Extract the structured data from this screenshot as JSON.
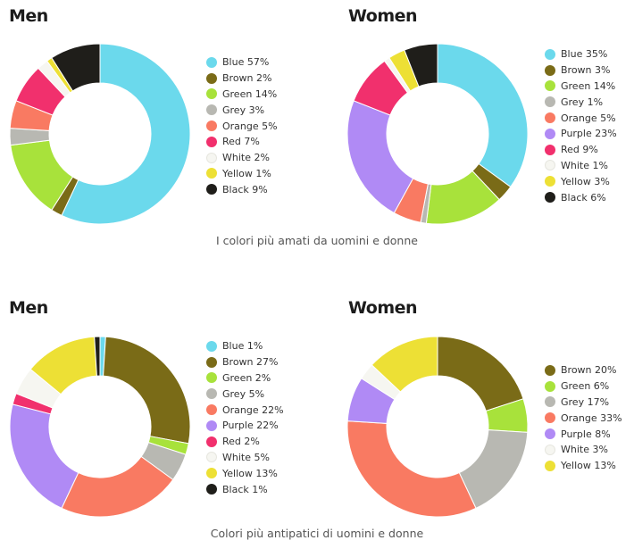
{
  "colors": {
    "Blue": "#6bd9ec",
    "Brown": "#7a6b17",
    "Green": "#a8e23b",
    "Grey": "#b8b8b2",
    "Orange": "#f97a62",
    "Purple": "#b08af5",
    "Red": "#f1306d",
    "White": "#f6f6f1",
    "Yellow": "#ede035",
    "Black": "#1f1e1a"
  },
  "captions": {
    "top": "I colori più amati da uomini e donne",
    "bottom": "Colori più antipatici di uomini e donne"
  },
  "chart_data": [
    {
      "type": "pie",
      "title": "Men",
      "labels": [
        "Blue",
        "Brown",
        "Green",
        "Grey",
        "Orange",
        "Red",
        "White",
        "Yellow",
        "Black"
      ],
      "values": [
        57,
        2,
        14,
        3,
        5,
        7,
        2,
        1,
        9
      ],
      "legend": [
        "Blue 57%",
        "Brown 2%",
        "Green 14%",
        "Grey 3%",
        "Orange 5%",
        "Red 7%",
        "White 2%",
        "Yellow 1%",
        "Black 9%"
      ]
    },
    {
      "type": "pie",
      "title": "Women",
      "labels": [
        "Blue",
        "Brown",
        "Green",
        "Grey",
        "Orange",
        "Purple",
        "Red",
        "White",
        "Yellow",
        "Black"
      ],
      "values": [
        35,
        3,
        14,
        1,
        5,
        23,
        9,
        1,
        3,
        6
      ],
      "legend": [
        "Blue 35%",
        "Brown 3%",
        "Green 14%",
        "Grey 1%",
        "Orange 5%",
        "Purple 23%",
        "Red 9%",
        "White 1%",
        "Yellow 3%",
        "Black 6%"
      ]
    },
    {
      "type": "pie",
      "title": "Men",
      "labels": [
        "Blue",
        "Brown",
        "Green",
        "Grey",
        "Orange",
        "Purple",
        "Red",
        "White",
        "Yellow",
        "Black"
      ],
      "values": [
        1,
        27,
        2,
        5,
        22,
        22,
        2,
        5,
        13,
        1
      ],
      "legend": [
        "Blue 1%",
        "Brown 27%",
        "Green 2%",
        "Grey 5%",
        "Orange 22%",
        "Purple 22%",
        "Red 2%",
        "White 5%",
        "Yellow 13%",
        "Black 1%"
      ]
    },
    {
      "type": "pie",
      "title": "Women",
      "labels": [
        "Brown",
        "Green",
        "Grey",
        "Orange",
        "Purple",
        "White",
        "Yellow"
      ],
      "values": [
        20,
        6,
        17,
        33,
        8,
        3,
        13
      ],
      "legend": [
        "Brown 20%",
        "Green 6%",
        "Grey 17%",
        "Orange 33%",
        "Purple 8%",
        "White 3%",
        "Yellow 13%"
      ]
    }
  ]
}
